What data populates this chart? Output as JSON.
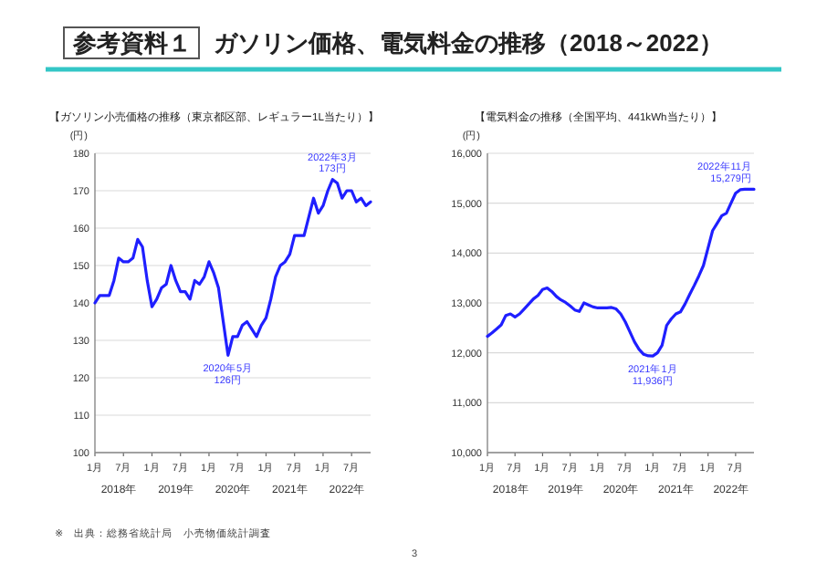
{
  "chart_data": [
    {
      "type": "other",
      "title": "参考資料１",
      "subtitle": "ガソリン価格、電気料金の推移（2018～2022）",
      "annotations": [
        "※　出典：総務省統計局　小売物価統計調査",
        "3"
      ]
    },
    {
      "type": "line",
      "title": "【ガソリン小売価格の推移（東京都区部、レギュラー1L当たり）】",
      "ylabel": "(円)",
      "x": [
        "2018-01",
        "2018-02",
        "2018-03",
        "2018-04",
        "2018-05",
        "2018-06",
        "2018-07",
        "2018-08",
        "2018-09",
        "2018-10",
        "2018-11",
        "2018-12",
        "2019-01",
        "2019-02",
        "2019-03",
        "2019-04",
        "2019-05",
        "2019-06",
        "2019-07",
        "2019-08",
        "2019-09",
        "2019-10",
        "2019-11",
        "2019-12",
        "2020-01",
        "2020-02",
        "2020-03",
        "2020-04",
        "2020-05",
        "2020-06",
        "2020-07",
        "2020-08",
        "2020-09",
        "2020-10",
        "2020-11",
        "2020-12",
        "2021-01",
        "2021-02",
        "2021-03",
        "2021-04",
        "2021-05",
        "2021-06",
        "2021-07",
        "2021-08",
        "2021-09",
        "2021-10",
        "2021-11",
        "2021-12",
        "2022-01",
        "2022-02",
        "2022-03",
        "2022-04",
        "2022-05",
        "2022-06",
        "2022-07",
        "2022-08",
        "2022-09",
        "2022-10",
        "2022-11"
      ],
      "series": [
        {
          "color": "#1f1fff",
          "values": [
            140,
            142,
            142,
            142,
            146,
            152,
            151,
            151,
            152,
            157,
            155,
            146,
            139,
            141,
            144,
            145,
            150,
            146,
            143,
            143,
            141,
            146,
            145,
            147,
            151,
            148,
            144,
            135,
            126,
            131,
            131,
            134,
            135,
            133,
            131,
            134,
            136,
            141,
            147,
            150,
            151,
            153,
            158,
            158,
            158,
            163,
            168,
            164,
            166,
            170,
            173,
            172,
            168,
            170,
            170,
            167,
            168,
            166,
            167
          ]
        }
      ],
      "xlim": [
        "2018-01",
        "2022-11"
      ],
      "xticks": [
        {
          "value": "2018-01",
          "label": "1月"
        },
        {
          "value": "2018-07",
          "label": "7月"
        },
        {
          "value": "2019-01",
          "label": "1月"
        },
        {
          "value": "2019-07",
          "label": "7月"
        },
        {
          "value": "2020-01",
          "label": "1月"
        },
        {
          "value": "2020-07",
          "label": "7月"
        },
        {
          "value": "2021-01",
          "label": "1月"
        },
        {
          "value": "2021-07",
          "label": "7月"
        },
        {
          "value": "2022-01",
          "label": "1月"
        },
        {
          "value": "2022-07",
          "label": "7月"
        }
      ],
      "ylim": [
        100,
        180
      ],
      "yticks": [
        100,
        110,
        120,
        130,
        140,
        150,
        160,
        170,
        180
      ],
      "grid": "y",
      "annotations": [
        {
          "text": "2022年3月\n173円",
          "x": "2022-03",
          "y": 173
        },
        {
          "text": "2020年5月\n126円",
          "x": "2020-05",
          "y": 126
        },
        "2018年",
        "2019年",
        "2020年",
        "2021年",
        "2022年"
      ]
    },
    {
      "type": "line",
      "title": "【電気料金の推移（全国平均、441kWh当たり）】",
      "ylabel": "(円)",
      "x": [
        "2018-01",
        "2018-02",
        "2018-03",
        "2018-04",
        "2018-05",
        "2018-06",
        "2018-07",
        "2018-08",
        "2018-09",
        "2018-10",
        "2018-11",
        "2018-12",
        "2019-01",
        "2019-02",
        "2019-03",
        "2019-04",
        "2019-05",
        "2019-06",
        "2019-07",
        "2019-08",
        "2019-09",
        "2019-10",
        "2019-11",
        "2019-12",
        "2020-01",
        "2020-02",
        "2020-03",
        "2020-04",
        "2020-05",
        "2020-06",
        "2020-07",
        "2020-08",
        "2020-09",
        "2020-10",
        "2020-11",
        "2020-12",
        "2021-01",
        "2021-02",
        "2021-03",
        "2021-04",
        "2021-05",
        "2021-06",
        "2021-07",
        "2021-08",
        "2021-09",
        "2021-10",
        "2021-11",
        "2021-12",
        "2022-01",
        "2022-02",
        "2022-03",
        "2022-04",
        "2022-05",
        "2022-06",
        "2022-07",
        "2022-08",
        "2022-09",
        "2022-10",
        "2022-11"
      ],
      "series": [
        {
          "color": "#1f1fff",
          "values": [
            12330,
            12400,
            12480,
            12560,
            12750,
            12780,
            12720,
            12780,
            12880,
            12980,
            13080,
            13150,
            13270,
            13300,
            13230,
            13130,
            13060,
            13010,
            12940,
            12860,
            12830,
            13000,
            12960,
            12920,
            12900,
            12900,
            12900,
            12910,
            12880,
            12780,
            12620,
            12420,
            12220,
            12070,
            11970,
            11940,
            11936,
            12000,
            12150,
            12550,
            12680,
            12780,
            12820,
            12980,
            13170,
            13350,
            13540,
            13750,
            14100,
            14450,
            14600,
            14750,
            14800,
            15000,
            15200,
            15270,
            15279,
            15279,
            15279
          ]
        }
      ],
      "xlim": [
        "2018-01",
        "2022-11"
      ],
      "xticks": [
        {
          "value": "2018-01",
          "label": "1月"
        },
        {
          "value": "2018-07",
          "label": "7月"
        },
        {
          "value": "2019-01",
          "label": "1月"
        },
        {
          "value": "2019-07",
          "label": "7月"
        },
        {
          "value": "2020-01",
          "label": "1月"
        },
        {
          "value": "2020-07",
          "label": "7月"
        },
        {
          "value": "2021-01",
          "label": "1月"
        },
        {
          "value": "2021-07",
          "label": "7月"
        },
        {
          "value": "2022-01",
          "label": "1月"
        },
        {
          "value": "2022-07",
          "label": "7月"
        }
      ],
      "ylim": [
        10000,
        16000
      ],
      "yticks": [
        {
          "value": 10000,
          "label": "10,000"
        },
        {
          "value": 11000,
          "label": "11,000"
        },
        {
          "value": 12000,
          "label": "12,000"
        },
        {
          "value": 13000,
          "label": "13,000"
        },
        {
          "value": 14000,
          "label": "14,000"
        },
        {
          "value": 15000,
          "label": "15,000"
        },
        {
          "value": 16000,
          "label": "16,000"
        }
      ],
      "grid": "y",
      "annotations": [
        {
          "text": "2022年11月\n15,279円",
          "x": "2022-11",
          "y": 15279
        },
        {
          "text": "2021年1月\n11,936円",
          "x": "2021-01",
          "y": 11936
        },
        "2018年",
        "2019年",
        "2020年",
        "2021年",
        "2022年"
      ]
    }
  ]
}
